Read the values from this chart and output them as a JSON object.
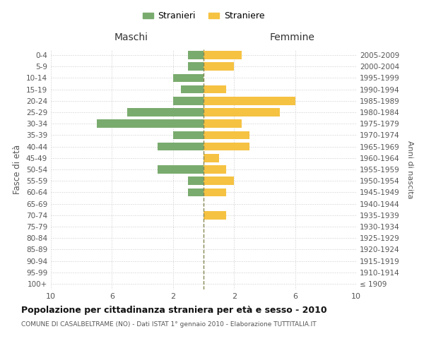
{
  "age_groups": [
    "0-4",
    "5-9",
    "10-14",
    "15-19",
    "20-24",
    "25-29",
    "30-34",
    "35-39",
    "40-44",
    "45-49",
    "50-54",
    "55-59",
    "60-64",
    "65-69",
    "70-74",
    "75-79",
    "80-84",
    "85-89",
    "90-94",
    "95-99",
    "100+"
  ],
  "birth_years": [
    "2005-2009",
    "2000-2004",
    "1995-1999",
    "1990-1994",
    "1985-1989",
    "1980-1984",
    "1975-1979",
    "1970-1974",
    "1965-1969",
    "1960-1964",
    "1955-1959",
    "1950-1954",
    "1945-1949",
    "1940-1944",
    "1935-1939",
    "1930-1934",
    "1925-1929",
    "1920-1924",
    "1915-1919",
    "1910-1914",
    "≤ 1909"
  ],
  "maschi": [
    1,
    1,
    2,
    1.5,
    2,
    5,
    7,
    2,
    3,
    0,
    3,
    1,
    1,
    0,
    0,
    0,
    0,
    0,
    0,
    0,
    0
  ],
  "femmine": [
    2.5,
    2,
    0,
    1.5,
    6,
    5,
    2.5,
    3,
    3,
    1,
    1.5,
    2,
    1.5,
    0,
    1.5,
    0,
    0,
    0,
    0,
    0,
    0
  ],
  "male_color": "#7aab6e",
  "female_color": "#f5c242",
  "center_line_color": "#888855",
  "bg_color": "#ffffff",
  "grid_color": "#cccccc",
  "title": "Popolazione per cittadinanza straniera per età e sesso - 2010",
  "subtitle": "COMUNE DI CASALBELTRAME (NO) - Dati ISTAT 1° gennaio 2010 - Elaborazione TUTTITALIA.IT",
  "xlabel_left": "Maschi",
  "xlabel_right": "Femmine",
  "ylabel_left": "Fasce di età",
  "ylabel_right": "Anni di nascita",
  "legend_male": "Stranieri",
  "legend_female": "Straniere"
}
